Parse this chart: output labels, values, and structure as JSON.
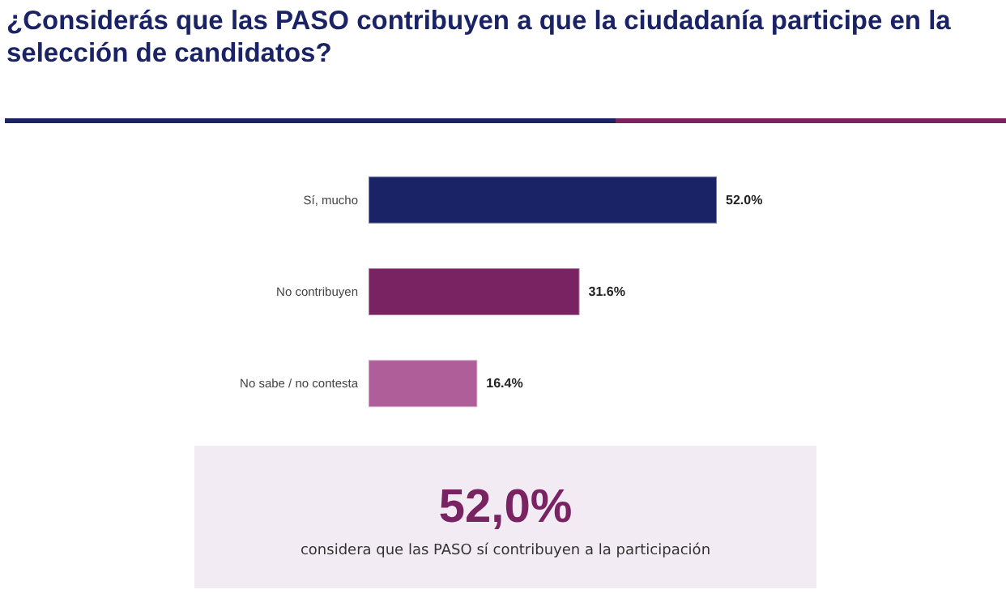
{
  "chart_data": {
    "type": "bar",
    "orientation": "horizontal",
    "title": "¿Considerás que las PASO contribuyen a que la ciudadanía participe en la selección de candidatos?",
    "categories": [
      "Sí, mucho",
      "No contribuyen",
      "No sabe / no contesta"
    ],
    "values": [
      52.0,
      31.6,
      16.4
    ],
    "colors": [
      "#1b2367",
      "#7a2362",
      "#b05e9a"
    ],
    "value_labels": [
      "52.0%",
      "31.6%",
      "16.4%"
    ],
    "annotations": [
      "52,0%",
      "considera que las PASO sí contribuyen a la participación"
    ],
    "data_labels": false
  }
}
